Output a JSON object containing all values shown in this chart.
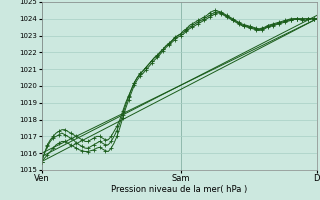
{
  "xlabel": "Pression niveau de la mer( hPa )",
  "background_color": "#cce8df",
  "grid_color": "#a8cfc4",
  "line_color": "#1a5c1a",
  "ylim": [
    1015,
    1025
  ],
  "yticks": [
    1015,
    1016,
    1017,
    1018,
    1019,
    1020,
    1021,
    1022,
    1023,
    1024,
    1025
  ],
  "xtick_labels": [
    "Ven",
    "Sam",
    "D"
  ],
  "xtick_positions": [
    0,
    48,
    95
  ],
  "total_points": 96,
  "straight_lines": [
    [
      [
        0,
        1015.5
      ],
      [
        95,
        1024.0
      ]
    ],
    [
      [
        0,
        1015.8
      ],
      [
        95,
        1024.2
      ]
    ],
    [
      [
        0,
        1016.0
      ],
      [
        95,
        1024.0
      ]
    ]
  ],
  "wiggly_lines": [
    [
      1015.5,
      1016.0,
      1016.5,
      1016.8,
      1017.0,
      1017.2,
      1017.3,
      1017.4,
      1017.4,
      1017.3,
      1017.2,
      1017.1,
      1017.0,
      1016.9,
      1016.8,
      1016.7,
      1016.7,
      1016.8,
      1016.9,
      1017.0,
      1017.0,
      1016.9,
      1016.8,
      1016.8,
      1017.0,
      1017.3,
      1017.6,
      1018.0,
      1018.5,
      1019.0,
      1019.4,
      1019.8,
      1020.2,
      1020.5,
      1020.7,
      1020.9,
      1021.1,
      1021.3,
      1021.5,
      1021.7,
      1021.8,
      1022.0,
      1022.2,
      1022.4,
      1022.5,
      1022.7,
      1022.9,
      1023.0,
      1023.1,
      1023.3,
      1023.4,
      1023.6,
      1023.7,
      1023.8,
      1023.9,
      1024.0,
      1024.1,
      1024.2,
      1024.35,
      1024.45,
      1024.5,
      1024.45,
      1024.4,
      1024.3,
      1024.2,
      1024.1,
      1024.0,
      1023.9,
      1023.8,
      1023.7,
      1023.65,
      1023.6,
      1023.55,
      1023.5,
      1023.45,
      1023.4,
      1023.45,
      1023.5,
      1023.6,
      1023.65,
      1023.7,
      1023.75,
      1023.8,
      1023.85,
      1023.9,
      1023.95,
      1024.0,
      1024.0,
      1024.0,
      1023.95,
      1023.95,
      1023.9,
      1024.0,
      1024.0,
      1024.0,
      1024.0
    ],
    [
      1015.5,
      1016.0,
      1016.4,
      1016.7,
      1016.9,
      1017.0,
      1017.1,
      1017.2,
      1017.1,
      1017.0,
      1016.9,
      1016.8,
      1016.6,
      1016.5,
      1016.4,
      1016.3,
      1016.3,
      1016.4,
      1016.5,
      1016.6,
      1016.7,
      1016.6,
      1016.5,
      1016.5,
      1016.7,
      1017.0,
      1017.35,
      1017.8,
      1018.3,
      1018.85,
      1019.35,
      1019.8,
      1020.2,
      1020.5,
      1020.75,
      1020.9,
      1021.1,
      1021.3,
      1021.5,
      1021.7,
      1021.85,
      1022.05,
      1022.2,
      1022.4,
      1022.55,
      1022.7,
      1022.85,
      1023.0,
      1023.1,
      1023.2,
      1023.35,
      1023.5,
      1023.6,
      1023.7,
      1023.8,
      1023.9,
      1024.0,
      1024.1,
      1024.2,
      1024.3,
      1024.4,
      1024.4,
      1024.35,
      1024.25,
      1024.15,
      1024.05,
      1023.95,
      1023.85,
      1023.75,
      1023.65,
      1023.6,
      1023.55,
      1023.5,
      1023.45,
      1023.4,
      1023.35,
      1023.4,
      1023.45,
      1023.55,
      1023.6,
      1023.65,
      1023.7,
      1023.75,
      1023.8,
      1023.85,
      1023.9,
      1023.95,
      1024.0,
      1024.0,
      1024.0,
      1024.0,
      1024.0,
      1024.0,
      1024.0,
      1024.0,
      1024.0
    ],
    [
      1015.5,
      1015.7,
      1015.9,
      1016.1,
      1016.3,
      1016.5,
      1016.6,
      1016.7,
      1016.7,
      1016.6,
      1016.5,
      1016.4,
      1016.3,
      1016.2,
      1016.15,
      1016.1,
      1016.1,
      1016.15,
      1016.2,
      1016.3,
      1016.35,
      1016.25,
      1016.15,
      1016.1,
      1016.3,
      1016.6,
      1017.0,
      1017.5,
      1018.1,
      1018.65,
      1019.15,
      1019.6,
      1020.05,
      1020.35,
      1020.6,
      1020.75,
      1020.95,
      1021.15,
      1021.35,
      1021.55,
      1021.7,
      1021.9,
      1022.1,
      1022.3,
      1022.45,
      1022.6,
      1022.75,
      1022.9,
      1023.0,
      1023.1,
      1023.25,
      1023.4,
      1023.5,
      1023.6,
      1023.7,
      1023.8,
      1023.9,
      1024.0,
      1024.1,
      1024.2,
      1024.3,
      1024.35,
      1024.3,
      1024.2,
      1024.1,
      1024.0,
      1023.9,
      1023.8,
      1023.7,
      1023.6,
      1023.55,
      1023.5,
      1023.45,
      1023.4,
      1023.35,
      1023.3,
      1023.35,
      1023.4,
      1023.5,
      1023.55,
      1023.6,
      1023.65,
      1023.7,
      1023.75,
      1023.8,
      1023.85,
      1023.9,
      1023.95,
      1024.0,
      1024.0,
      1024.0,
      1024.0,
      1024.0,
      1024.0,
      1024.0,
      1024.0
    ]
  ]
}
